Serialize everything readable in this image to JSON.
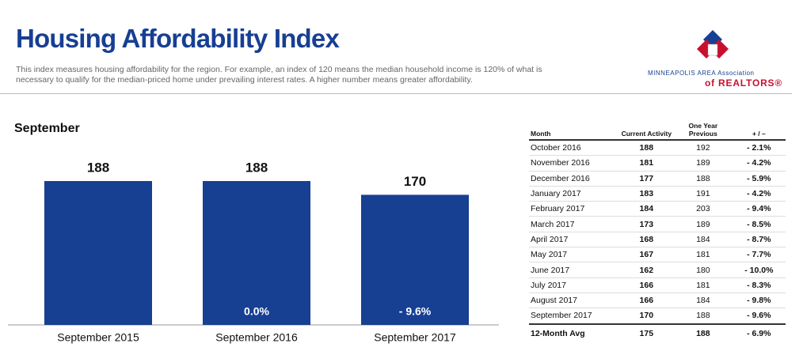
{
  "header": {
    "title": "Housing Affordability Index",
    "description": "This index measures housing affordability for the region. For example, an index of 120 means the median household income is 120% of what is necessary to qualify for the median-priced home under prevailing interest rates. A higher number means greater affordability.",
    "logo_line1": "MINNEAPOLIS AREA Association",
    "logo_line2": "of REALTORS®"
  },
  "chart_data": {
    "type": "bar",
    "title": "September",
    "categories": [
      "September 2015",
      "September 2016",
      "September 2017"
    ],
    "values": [
      188,
      188,
      170
    ],
    "annotations": [
      null,
      "0.0%",
      "- 9.6%"
    ],
    "color": "#173f92"
  },
  "table": {
    "columns": [
      "Month",
      "Current Activity",
      "One Year Previous",
      "+ / –"
    ],
    "rows": [
      [
        "October 2016",
        188,
        192,
        "- 2.1%"
      ],
      [
        "November 2016",
        181,
        189,
        "- 4.2%"
      ],
      [
        "December 2016",
        177,
        188,
        "- 5.9%"
      ],
      [
        "January 2017",
        183,
        191,
        "- 4.2%"
      ],
      [
        "February 2017",
        184,
        203,
        "- 9.4%"
      ],
      [
        "March 2017",
        173,
        189,
        "- 8.5%"
      ],
      [
        "April 2017",
        168,
        184,
        "- 8.7%"
      ],
      [
        "May 2017",
        167,
        181,
        "- 7.7%"
      ],
      [
        "June 2017",
        162,
        180,
        "- 10.0%"
      ],
      [
        "July 2017",
        166,
        181,
        "- 8.3%"
      ],
      [
        "August 2017",
        166,
        184,
        "- 9.8%"
      ],
      [
        "September 2017",
        170,
        188,
        "- 9.6%"
      ]
    ],
    "footer": [
      "12-Month Avg",
      175,
      188,
      "- 6.9%"
    ]
  }
}
